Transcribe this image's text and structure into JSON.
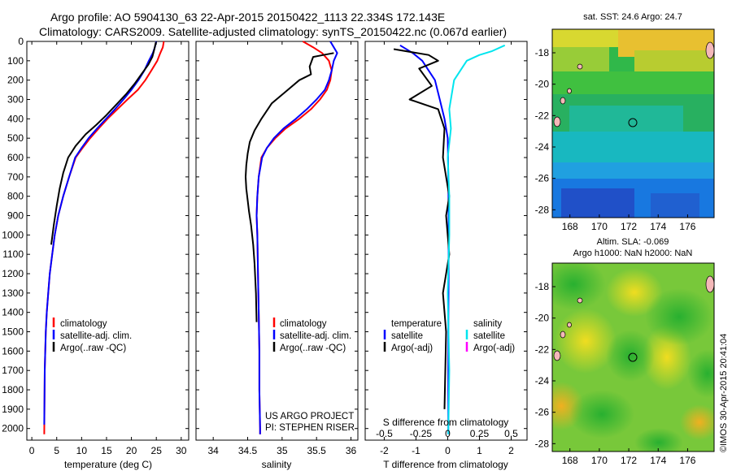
{
  "header": {
    "title_line1": "Argo profile: AO 5904130_63 22-Apr-2015 20150422_1113 22.334S 172.143E",
    "title_line2": "Climatology: CARS2009. Satellite-adjusted climatology: synTS_20150422.nc (0.067d earlier)"
  },
  "credits": {
    "project": "US ARGO PROJECT",
    "pi": "PI: STEPHEN RISER",
    "stamp": "©IMOS 30-Apr-2015 20:41:04"
  },
  "colors": {
    "climatology": "#ff0000",
    "satellite": "#0000ff",
    "argo": "#000000",
    "salinity_satellite": "#00e5ee",
    "salinity_argo": "#ff00ff"
  },
  "depth_axis": {
    "ticks": [
      0,
      100,
      200,
      300,
      400,
      500,
      600,
      700,
      800,
      900,
      1000,
      1100,
      1200,
      1300,
      1400,
      1500,
      1600,
      1700,
      1800,
      1900,
      2000
    ],
    "ylim": [
      2060,
      0
    ]
  },
  "chart_data": [
    {
      "id": "temperature",
      "type": "line",
      "xlabel": "temperature (deg C)",
      "xlim": [
        -1,
        31.5
      ],
      "xticks": [
        0,
        5,
        10,
        15,
        20,
        25,
        30
      ],
      "xtick_labels": [
        "0",
        "5",
        "10",
        "15",
        "20",
        "25",
        "30"
      ],
      "legend": [
        "climatology",
        "satellite-adj. clim.",
        "Argo(..raw -QC)"
      ],
      "series": [
        {
          "name": "climatology",
          "color": "#ff0000",
          "x": [
            26.5,
            26.3,
            25.8,
            25.2,
            24.0,
            22.8,
            21.3,
            19.2,
            17.2,
            15.2,
            13.4,
            11.7,
            10.2,
            8.8,
            7.5,
            6.3,
            5.3,
            4.6,
            4.1,
            3.6,
            3.3,
            3.0,
            2.8,
            2.6,
            2.5
          ],
          "y": [
            0,
            30,
            60,
            100,
            150,
            200,
            250,
            300,
            350,
            400,
            450,
            500,
            550,
            600,
            700,
            800,
            900,
            1000,
            1100,
            1200,
            1300,
            1400,
            1500,
            1700,
            2030
          ]
        },
        {
          "name": "satellite-adj. clim.",
          "color": "#0000ff",
          "x": [
            25.0,
            24.7,
            24.3,
            23.5,
            22.6,
            21.4,
            20.0,
            18.4,
            16.7,
            14.9,
            13.1,
            11.4,
            10.0,
            8.7,
            7.5,
            6.3,
            5.3,
            4.6,
            4.1,
            3.6,
            3.3,
            3.0,
            2.8,
            2.6,
            2.5
          ],
          "y": [
            0,
            30,
            60,
            100,
            150,
            200,
            250,
            300,
            350,
            400,
            450,
            500,
            550,
            600,
            700,
            800,
            900,
            1000,
            1100,
            1200,
            1300,
            1400,
            1500,
            1700,
            1980
          ]
        },
        {
          "name": "Argo(..raw -QC)",
          "color": "#000000",
          "x": [
            24.9,
            24.6,
            24.2,
            23.4,
            22.0,
            20.6,
            19.0,
            17.2,
            15.0,
            13.0,
            10.8,
            8.8,
            7.3,
            6.3,
            5.6,
            5.0,
            4.4,
            3.9
          ],
          "y": [
            5,
            40,
            80,
            120,
            170,
            220,
            270,
            320,
            380,
            430,
            480,
            540,
            600,
            680,
            760,
            850,
            950,
            1050
          ]
        }
      ]
    },
    {
      "id": "salinity",
      "type": "line",
      "xlabel": "salinity",
      "xlim": [
        33.75,
        36.1
      ],
      "xticks": [
        34,
        34.5,
        35,
        35.5,
        36
      ],
      "xtick_labels": [
        "34",
        "34.5",
        "35",
        "35.5",
        "36"
      ],
      "legend": [
        "climatology",
        "satellite-adj. clim.",
        "Argo(..raw -QC)"
      ],
      "series": [
        {
          "name": "climatology",
          "color": "#ff0000",
          "x": [
            35.3,
            35.45,
            35.58,
            35.68,
            35.72,
            35.7,
            35.65,
            35.55,
            35.42,
            35.25,
            35.05,
            34.9,
            34.78,
            34.7,
            34.66,
            34.64,
            34.63,
            34.64,
            34.65,
            34.66,
            34.67,
            34.67,
            34.68,
            34.68
          ],
          "y": [
            0,
            30,
            60,
            100,
            150,
            200,
            250,
            300,
            350,
            400,
            450,
            500,
            550,
            600,
            700,
            800,
            900,
            1000,
            1200,
            1400,
            1600,
            1800,
            2000,
            2030
          ]
        },
        {
          "name": "satellite-adj. clim.",
          "color": "#0000ff",
          "x": [
            35.7,
            35.75,
            35.8,
            35.75,
            35.72,
            35.68,
            35.62,
            35.5,
            35.36,
            35.2,
            35.02,
            34.88,
            34.78,
            34.71,
            34.66,
            34.64,
            34.63,
            34.64,
            34.65,
            34.66,
            34.67,
            34.67,
            34.68,
            34.68
          ],
          "y": [
            0,
            30,
            60,
            100,
            150,
            200,
            250,
            300,
            350,
            400,
            450,
            500,
            550,
            600,
            700,
            800,
            900,
            1000,
            1200,
            1400,
            1600,
            1800,
            2000,
            2030
          ]
        },
        {
          "name": "Argo(..raw -QC)",
          "color": "#000000",
          "x": [
            35.75,
            35.6,
            35.45,
            35.4,
            35.42,
            35.25,
            35.05,
            34.85,
            34.7,
            34.6,
            34.53,
            34.5,
            34.48,
            34.47,
            34.48,
            34.5,
            34.52,
            34.55,
            34.58,
            34.6,
            34.62,
            34.63
          ],
          "y": [
            60,
            70,
            80,
            130,
            170,
            200,
            260,
            320,
            400,
            460,
            520,
            580,
            640,
            700,
            760,
            820,
            880,
            950,
            1050,
            1150,
            1300,
            1450
          ]
        }
      ]
    },
    {
      "id": "difference",
      "type": "line",
      "xlabel": "T difference from climatology",
      "xlabel2": "S difference from climatology",
      "xlim": [
        -2.6,
        2.5
      ],
      "xticks": [
        -2,
        -1,
        0,
        1,
        2
      ],
      "xtick_labels": [
        "-2",
        "-1",
        "0",
        "1",
        "2"
      ],
      "xticks2": [
        -0.5,
        -0.25,
        0,
        0.25,
        0.5
      ],
      "xtick2_labels": [
        "-0.5",
        "-0.25",
        "0",
        "0.25",
        "0.5"
      ],
      "xtick2_pos": [
        -2,
        -1,
        0,
        1,
        2
      ],
      "legend_temperature_title": "temperature",
      "legend_salinity_title": "salinity",
      "legend": [
        "satellite",
        "Argo(-adj)",
        "satellite",
        "Argo(-adj)"
      ],
      "series": [
        {
          "name": "satellite",
          "color": "#0000ff",
          "x": [
            -1.5,
            -1.1,
            -0.8,
            -0.6,
            -0.4,
            -0.25,
            -0.1,
            0,
            0.02,
            0.03,
            0.03,
            0.02,
            0.02,
            0.02
          ],
          "y": [
            20,
            60,
            100,
            150,
            200,
            300,
            400,
            500,
            700,
            900,
            1200,
            1500,
            1800,
            2030
          ]
        },
        {
          "name": "Argo(-adj)",
          "color": "#000000",
          "x": [
            -1.7,
            -0.6,
            -0.3,
            -0.9,
            -0.5,
            -1.2,
            -0.3,
            -0.1,
            -0.15,
            -0.05,
            0.05,
            -0.05,
            0.05,
            -0.15,
            -0.05,
            -0.1
          ],
          "y": [
            40,
            70,
            100,
            140,
            230,
            300,
            350,
            450,
            600,
            700,
            800,
            900,
            1100,
            1300,
            1500,
            1900
          ]
        },
        {
          "name": "salinity satellite",
          "color": "#00e5ee",
          "x": [
            1.8,
            1.4,
            1.0,
            0.6,
            0.2,
            0.05,
            0.1,
            0.0,
            0.05,
            0.05,
            0.0,
            0.05,
            0.02
          ],
          "y": [
            20,
            50,
            70,
            100,
            200,
            350,
            450,
            600,
            800,
            1000,
            1300,
            1700,
            2030
          ]
        }
      ]
    },
    {
      "id": "sst_map",
      "type": "heatmap",
      "title": "sat. SST: 24.6 Argo: 24.7",
      "xticks": [
        168,
        170,
        172,
        174,
        176
      ],
      "yticks": [
        -18,
        -20,
        -22,
        -24,
        -26,
        -28
      ],
      "xlim": [
        166.8,
        177.8
      ],
      "ylim": [
        -28.5,
        -16.5
      ],
      "argo_marker": [
        172.143,
        -22.334
      ]
    },
    {
      "id": "sla_map",
      "type": "heatmap",
      "title": "Altim. SLA: -0.069",
      "subtitle": "Argo h1000: NaN h2000: NaN",
      "xticks": [
        168,
        170,
        172,
        174,
        176
      ],
      "yticks": [
        -18,
        -20,
        -22,
        -24,
        -26,
        -28
      ],
      "xlim": [
        166.8,
        177.8
      ],
      "ylim": [
        -28.5,
        -16.5
      ],
      "argo_marker": [
        172.143,
        -22.334
      ]
    }
  ]
}
